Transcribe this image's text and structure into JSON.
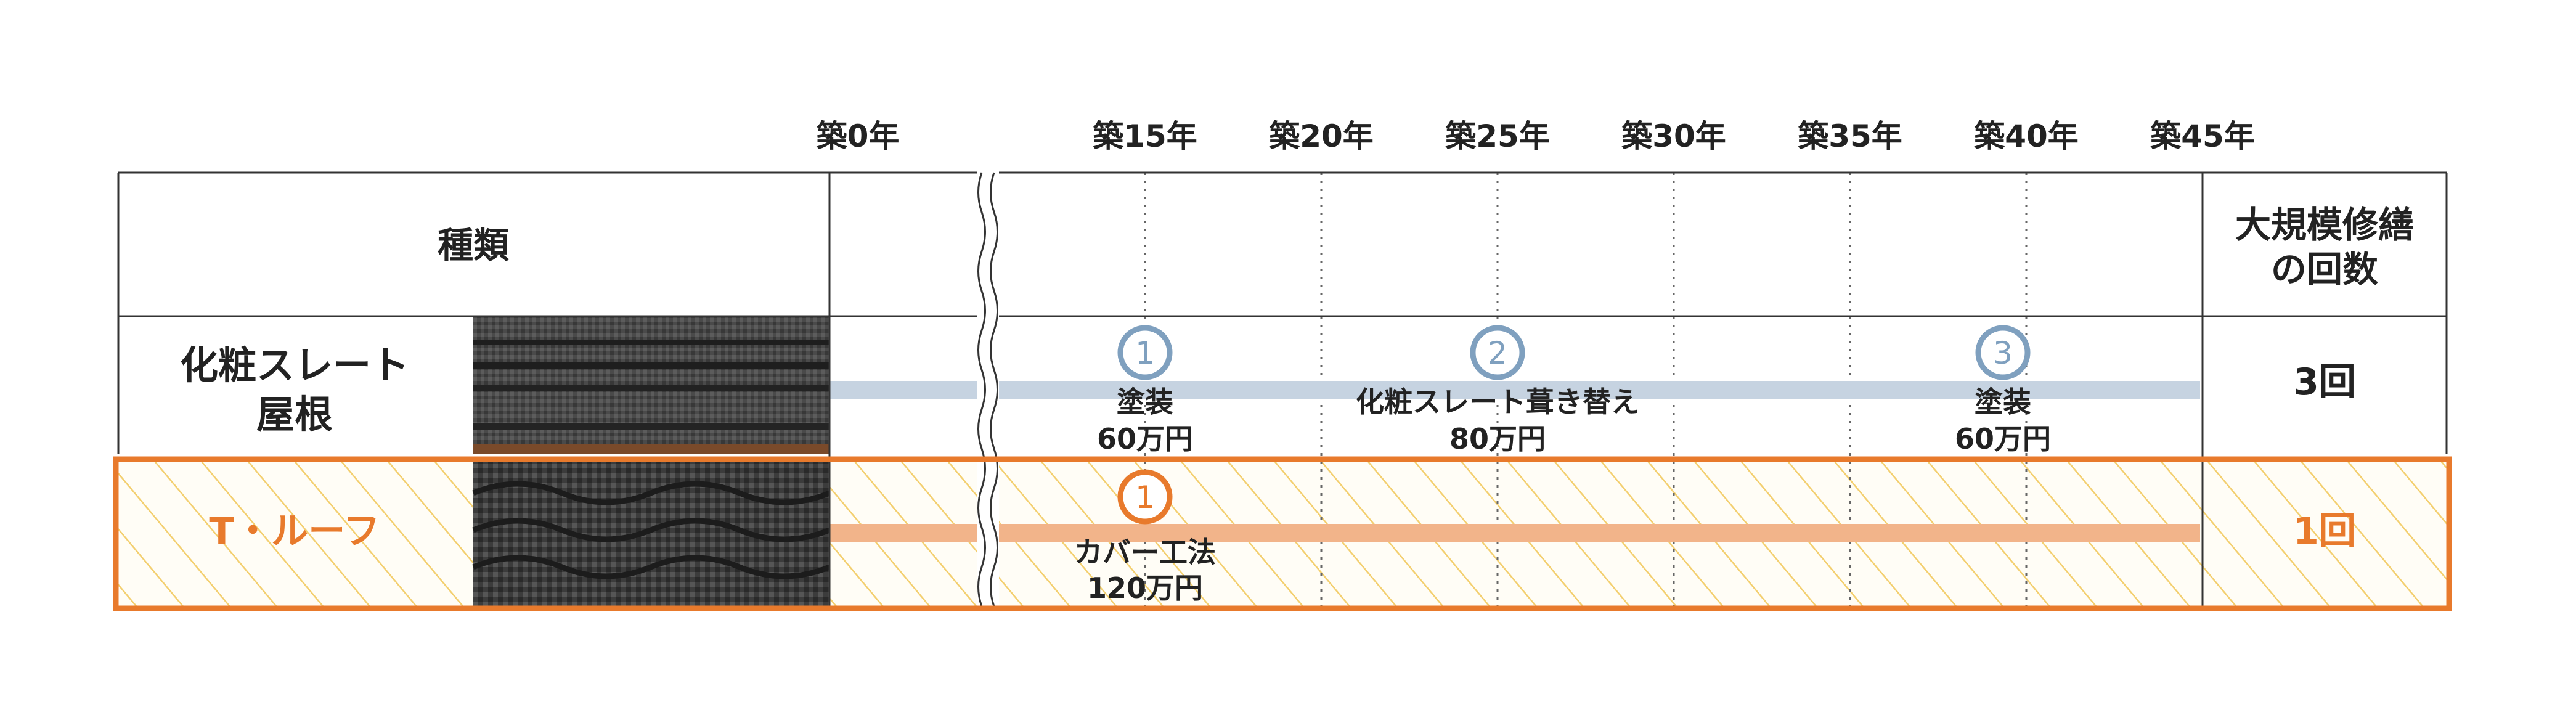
{
  "year_labels": [
    "築0年",
    "築15年",
    "築20年",
    "築25年",
    "築30年",
    "築35年",
    "築40年",
    "築45年"
  ],
  "header": {
    "type_label": "種類",
    "count_label_line1": "大規模修繕",
    "count_label_line2": "の回数"
  },
  "rows": [
    {
      "name_line1": "化粧スレート",
      "name_line2": "屋根",
      "count": "3回",
      "events": [
        {
          "number": "1",
          "line1": "塗装",
          "line2": "60万円",
          "year": 15
        },
        {
          "number": "2",
          "line1": "化粧スレート葺き替え",
          "line2": "80万円",
          "year": 25
        },
        {
          "number": "3",
          "line1": "塗装",
          "line2": "60万円",
          "year": 40
        }
      ]
    },
    {
      "name": "T・ルーフ",
      "count": "1回",
      "events": [
        {
          "number": "1",
          "line1": "カバー工法",
          "line2": "120万円",
          "year": 15
        }
      ]
    }
  ],
  "colors": {
    "grid": "#333333",
    "slate_line": "#c6d3e1",
    "slate_circle": "#7fa0bf",
    "troof_accent": "#e87a2c",
    "troof_line": "#f2b48a",
    "hatch": "#f3cf6f"
  }
}
